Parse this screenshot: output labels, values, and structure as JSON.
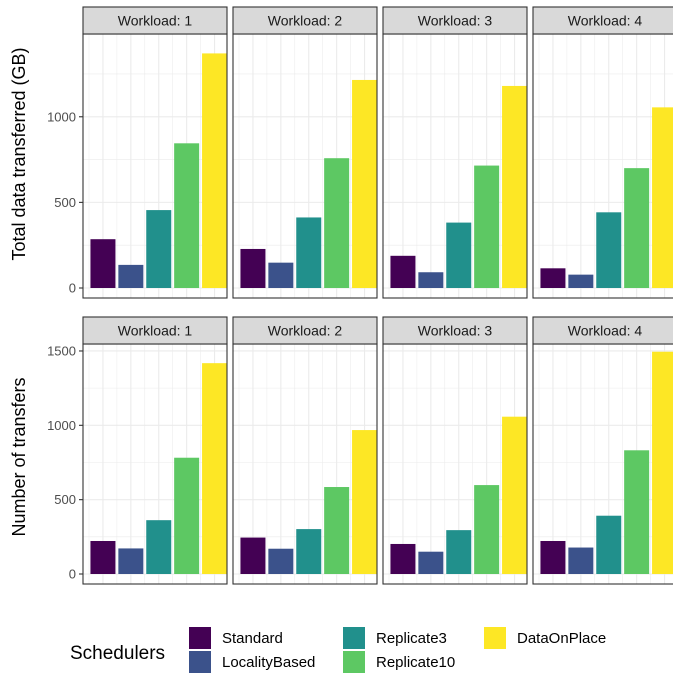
{
  "chart_data": [
    {
      "type": "bar",
      "ylabel": "Total data transferred (GB)",
      "ylim": [
        0,
        1460
      ],
      "yticks": [
        0,
        500,
        1000
      ],
      "grid": true,
      "facets": [
        {
          "strip": "Workload: 1",
          "values": [
            285,
            135,
            455,
            845,
            1370
          ]
        },
        {
          "strip": "Workload: 2",
          "values": [
            228,
            148,
            412,
            758,
            1215
          ]
        },
        {
          "strip": "Workload: 3",
          "values": [
            188,
            92,
            382,
            715,
            1180
          ]
        },
        {
          "strip": "Workload: 4",
          "values": [
            115,
            78,
            442,
            700,
            1055
          ]
        }
      ]
    },
    {
      "type": "bar",
      "ylabel": "Number of transfers",
      "ylim": [
        0,
        1520
      ],
      "yticks": [
        0,
        500,
        1000,
        1500
      ],
      "grid": true,
      "facets": [
        {
          "strip": "Workload: 1",
          "values": [
            222,
            172,
            362,
            782,
            1418
          ]
        },
        {
          "strip": "Workload: 2",
          "values": [
            245,
            170,
            302,
            585,
            968
          ]
        },
        {
          "strip": "Workload: 3",
          "values": [
            202,
            150,
            295,
            598,
            1058
          ]
        },
        {
          "strip": "Workload: 4",
          "values": [
            222,
            178,
            392,
            832,
            1495
          ]
        }
      ]
    }
  ],
  "legend": {
    "title": "Schedulers",
    "position": "bottom",
    "items": [
      {
        "label": "Standard",
        "color": "#440154"
      },
      {
        "label": "LocalityBased",
        "color": "#3B528B"
      },
      {
        "label": "Replicate3",
        "color": "#21908C"
      },
      {
        "label": "Replicate10",
        "color": "#5DC863"
      },
      {
        "label": "DataOnPlace",
        "color": "#FDE725"
      }
    ]
  }
}
